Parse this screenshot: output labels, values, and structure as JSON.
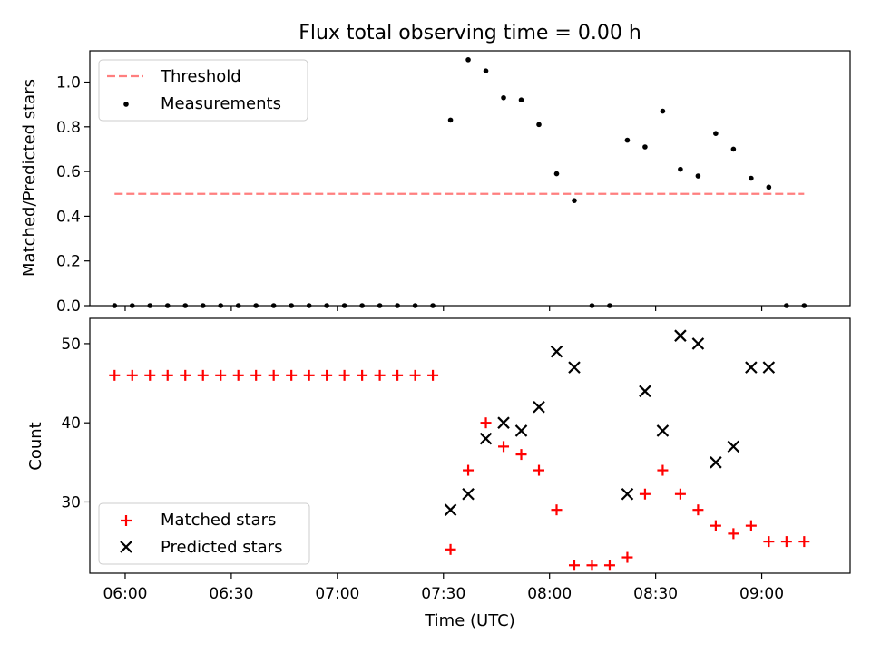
{
  "title": "Flux total observing time = 0.00 h",
  "colors": {
    "threshold": "#ff7f7f",
    "measurements": "#000000",
    "matched": "#ff0000",
    "predicted": "#000000"
  },
  "chart_data": [
    {
      "type": "scatter",
      "title": "Flux total observing time = 0.00 h",
      "ylabel": "Matched/Predicted stars",
      "xlabel": "",
      "ylim": [
        0,
        1.14
      ],
      "yticks": [
        "0.0",
        "0.2",
        "0.4",
        "0.6",
        "0.8",
        "1.0"
      ],
      "ytick_values": [
        0,
        0.2,
        0.4,
        0.6,
        0.8,
        1.0
      ],
      "legend": {
        "position": "top-left",
        "entries": [
          "Threshold",
          "Measurements"
        ]
      },
      "threshold": {
        "name": "Threshold",
        "y": 0.5,
        "x_start": "05:57",
        "x_end": "09:12",
        "style": "dashed"
      },
      "series": [
        {
          "name": "Measurements",
          "marker": "dot",
          "x": [
            "05:57",
            "06:02",
            "06:07",
            "06:12",
            "06:17",
            "06:22",
            "06:27",
            "06:32",
            "06:37",
            "06:42",
            "06:47",
            "06:52",
            "06:57",
            "07:02",
            "07:07",
            "07:12",
            "07:17",
            "07:22",
            "07:27",
            "07:32",
            "07:37",
            "07:42",
            "07:47",
            "07:52",
            "07:57",
            "08:02",
            "08:07",
            "08:12",
            "08:17",
            "08:22",
            "08:27",
            "08:32",
            "08:37",
            "08:42",
            "08:47",
            "08:52",
            "08:57",
            "09:02",
            "09:07",
            "09:12"
          ],
          "values": [
            0,
            0,
            0,
            0,
            0,
            0,
            0,
            0,
            0,
            0,
            0,
            0,
            0,
            0,
            0,
            0,
            0,
            0,
            0,
            0.83,
            1.1,
            1.05,
            0.93,
            0.92,
            0.81,
            0.59,
            0.47,
            0,
            0,
            0.74,
            0.71,
            0.87,
            0.61,
            0.58,
            0.77,
            0.7,
            0.57,
            0.53,
            0,
            0
          ]
        }
      ]
    },
    {
      "type": "scatter",
      "ylabel": "Count",
      "xlabel": "Time (UTC)",
      "ylim": [
        21,
        53.2
      ],
      "yticks": [
        "30",
        "40",
        "50"
      ],
      "ytick_values": [
        30,
        40,
        50
      ],
      "xlim": [
        "05:50",
        "09:25"
      ],
      "xticks": [
        "06:00",
        "06:30",
        "07:00",
        "07:30",
        "08:00",
        "08:30",
        "09:00"
      ],
      "legend": {
        "position": "bottom-left",
        "entries": [
          "Matched stars",
          "Predicted stars"
        ]
      },
      "series": [
        {
          "name": "Matched stars",
          "marker": "plus",
          "x": [
            "05:57",
            "06:02",
            "06:07",
            "06:12",
            "06:17",
            "06:22",
            "06:27",
            "06:32",
            "06:37",
            "06:42",
            "06:47",
            "06:52",
            "06:57",
            "07:02",
            "07:07",
            "07:12",
            "07:17",
            "07:22",
            "07:27",
            "07:32",
            "07:37",
            "07:42",
            "07:47",
            "07:52",
            "07:57",
            "08:02",
            "08:07",
            "08:12",
            "08:17",
            "08:22",
            "08:27",
            "08:32",
            "08:37",
            "08:42",
            "08:47",
            "08:52",
            "08:57",
            "09:02",
            "09:07",
            "09:12"
          ],
          "values": [
            46,
            46,
            46,
            46,
            46,
            46,
            46,
            46,
            46,
            46,
            46,
            46,
            46,
            46,
            46,
            46,
            46,
            46,
            46,
            24,
            34,
            40,
            37,
            36,
            34,
            29,
            22,
            22,
            22,
            23,
            31,
            34,
            31,
            29,
            27,
            26,
            27,
            25,
            25,
            25
          ]
        },
        {
          "name": "Predicted stars",
          "marker": "x",
          "x": [
            "07:32",
            "07:37",
            "07:42",
            "07:47",
            "07:52",
            "07:57",
            "08:02",
            "08:07",
            "08:22",
            "08:27",
            "08:32",
            "08:37",
            "08:42",
            "08:47",
            "08:52",
            "08:57",
            "09:02"
          ],
          "values": [
            29,
            31,
            38,
            40,
            39,
            42,
            49,
            47,
            31,
            44,
            39,
            51,
            50,
            35,
            37,
            47,
            47
          ]
        }
      ]
    }
  ]
}
